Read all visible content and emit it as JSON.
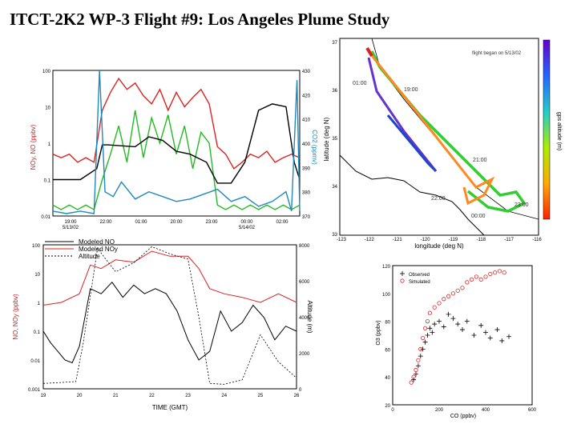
{
  "title": "ITCT-2K2 WP-3 Flight #9: Los Angeles Plume Study",
  "colors": {
    "red": "#dd2222",
    "green": "#22bb22",
    "black": "#000000",
    "cyan": "#2288bb"
  },
  "chart_data": [
    {
      "type": "line",
      "yscale": "log",
      "ylim": [
        0.01,
        100
      ],
      "y2lim": [
        370,
        430
      ],
      "ylabel": "NOy, NO (ppbv)",
      "y2label": "CO2 (ppmv)",
      "yticks": [
        "100",
        "10",
        "1",
        "0.1",
        "0.01"
      ],
      "y2ticks": [
        "430",
        "420",
        "410",
        "400",
        "390",
        "380",
        "370"
      ],
      "xticks": [
        "19:00\n5/13/02",
        "22:00",
        "01:00",
        "20:00",
        "23:00",
        "00:00\n5/14/02",
        "02:00"
      ],
      "series": [
        {
          "color": "red",
          "axis": "left",
          "x": [
            0,
            0.3,
            0.6,
            0.9,
            1.2,
            1.5,
            1.8,
            2.1,
            2.4,
            2.7,
            3,
            3.3,
            3.6,
            3.9,
            4.2,
            4.5,
            4.8,
            5.1,
            5.4,
            5.7,
            6,
            6.3,
            6.6,
            6.9,
            7.2,
            7.5,
            7.8,
            8.1,
            8.4,
            8.7,
            9
          ],
          "y": [
            0.5,
            0.4,
            0.5,
            0.3,
            0.4,
            0.3,
            8,
            25,
            60,
            30,
            45,
            20,
            12,
            30,
            8,
            25,
            10,
            18,
            30,
            12,
            0.8,
            0.5,
            0.2,
            0.3,
            0.5,
            0.4,
            0.6,
            0.3,
            0.4,
            0.5,
            0.4
          ]
        },
        {
          "color": "green",
          "axis": "left",
          "x": [
            0,
            0.3,
            0.6,
            0.9,
            1.2,
            1.5,
            1.8,
            2.1,
            2.4,
            2.7,
            3,
            3.3,
            3.6,
            3.9,
            4.2,
            4.5,
            4.8,
            5.1,
            5.4,
            5.7,
            6,
            6.3,
            6.6,
            6.9,
            7.2,
            7.5,
            7.8,
            8.1,
            8.4,
            8.7,
            9
          ],
          "y": [
            0.02,
            0.015,
            0.02,
            0.015,
            0.02,
            0.015,
            0.1,
            0.5,
            3,
            0.3,
            8,
            0.4,
            5,
            1,
            6,
            0.5,
            3,
            0.2,
            2,
            1,
            0.02,
            0.015,
            0.02,
            0.015,
            0.02,
            0.015,
            0.02,
            0.015,
            0.02,
            0.015,
            0.02
          ]
        },
        {
          "color": "black",
          "axis": "left",
          "x": [
            0,
            1,
            1.6,
            1.8,
            2,
            3,
            3.5,
            4,
            4.5,
            5,
            5.6,
            6,
            6.5,
            7,
            7.5,
            8,
            8.5,
            8.8,
            9
          ],
          "y": [
            0.1,
            0.1,
            0.2,
            0.9,
            0.9,
            0.8,
            1.5,
            1.2,
            0.6,
            0.5,
            0.3,
            0.08,
            0.08,
            0.3,
            8,
            12,
            10,
            0.3,
            0.1
          ]
        },
        {
          "color": "cyan",
          "axis": "right",
          "x": [
            0,
            0.5,
            1,
            1.5,
            1.7,
            1.9,
            2.2,
            2.5,
            3,
            3.5,
            4,
            4.5,
            5,
            5.5,
            6,
            6.5,
            7,
            7.5,
            8,
            8.5,
            8.7,
            8.9,
            9
          ],
          "y": [
            372,
            371,
            372,
            371,
            430,
            380,
            378,
            384,
            377,
            380,
            378,
            376,
            377,
            379,
            381,
            376,
            378,
            374,
            376,
            380,
            372,
            426,
            372
          ]
        }
      ]
    },
    {
      "type": "scatter",
      "xlabel": "longitude (deg N)",
      "ylabel": "latitude (deg N)",
      "colorbar_label": "gps altitude (m)",
      "xticks": [
        "-123",
        "-122",
        "-121",
        "-120",
        "-119",
        "-118",
        "-117",
        "-116"
      ],
      "yticks": [
        "37",
        "36",
        "35",
        "34",
        "33"
      ],
      "annotations": [
        "flight began on 5/13/02",
        "01:00",
        "19:00",
        "21:00",
        "22:00",
        "23:00",
        "00:00"
      ]
    },
    {
      "type": "line",
      "yscale": "log",
      "ylim": [
        0.001,
        100
      ],
      "xlim": [
        19,
        26
      ],
      "y2lim": [
        0,
        8000
      ],
      "xlabel": "TIME (GMT)",
      "ylabel": "NO, NOy (ppbv)",
      "y2label": "Altitude (m)",
      "xticks": [
        "19",
        "20",
        "21",
        "22",
        "23",
        "24",
        "25",
        "26"
      ],
      "yticks": [
        "100",
        "10",
        "1",
        "0.1",
        "0.01",
        "0.001"
      ],
      "y2ticks": [
        "8000",
        "6000",
        "4000",
        "2000",
        "0"
      ],
      "series": [
        {
          "name": "Modeled NO",
          "color": "black",
          "axis": "left",
          "x": [
            19,
            19.2,
            19.4,
            19.6,
            19.8,
            20,
            20.3,
            20.6,
            20.9,
            21.2,
            21.5,
            21.8,
            22.1,
            22.4,
            22.7,
            23,
            23.3,
            23.6,
            23.9,
            24.2,
            24.5,
            24.8,
            25.1,
            25.4,
            25.7,
            26
          ],
          "y": [
            0.1,
            0.04,
            0.02,
            0.01,
            0.008,
            0.03,
            3,
            2,
            5,
            1.5,
            4,
            2,
            3,
            2,
            0.5,
            0.05,
            0.01,
            0.02,
            0.5,
            0.1,
            0.2,
            0.8,
            0.3,
            0.05,
            0.15,
            0.1
          ]
        },
        {
          "name": "Modeled NOy",
          "color": "red",
          "axis": "left",
          "x": [
            19,
            19.5,
            20,
            20.3,
            20.6,
            21,
            21.5,
            22,
            22.5,
            23,
            23.3,
            23.6,
            24,
            24.5,
            25,
            25.5,
            26
          ],
          "y": [
            0.8,
            1,
            2,
            20,
            15,
            30,
            25,
            60,
            40,
            40,
            15,
            3,
            2,
            1.5,
            1,
            2,
            1
          ]
        },
        {
          "name": "Altitude",
          "color": "black",
          "axis": "right",
          "x": [
            19,
            19.5,
            19.9,
            20.1,
            20.5,
            21,
            21.5,
            22,
            22.5,
            23,
            23.3,
            23.6,
            24,
            24.5,
            25,
            25.5,
            26
          ],
          "y": [
            300,
            350,
            400,
            2500,
            7800,
            6500,
            7000,
            7900,
            7500,
            7200,
            4000,
            300,
            250,
            500,
            3000,
            1500,
            600
          ]
        }
      ]
    },
    {
      "type": "scatter",
      "xlabel": "CO (ppbv)",
      "ylabel": "O3 (ppbv)",
      "xlim": [
        0,
        600
      ],
      "ylim": [
        20,
        120
      ],
      "xticks": [
        "0",
        "200",
        "400",
        "600"
      ],
      "yticks": [
        "120",
        "100",
        "80",
        "60",
        "40",
        "20"
      ],
      "series": [
        {
          "name": "Observed",
          "color": "black",
          "marker": "+",
          "x": [
            90,
            100,
            110,
            120,
            130,
            140,
            150,
            160,
            170,
            180,
            200,
            220,
            240,
            260,
            280,
            300,
            320,
            350,
            380,
            400,
            420,
            450,
            470,
            500
          ],
          "y": [
            38,
            42,
            48,
            55,
            60,
            65,
            70,
            75,
            72,
            78,
            80,
            76,
            85,
            82,
            78,
            74,
            80,
            70,
            77,
            72,
            68,
            74,
            66,
            69
          ]
        },
        {
          "name": "Simulated",
          "color": "red",
          "marker": "o",
          "x": [
            80,
            90,
            100,
            110,
            120,
            130,
            140,
            150,
            160,
            180,
            200,
            220,
            240,
            260,
            280,
            300,
            320,
            340,
            360,
            380,
            400,
            420,
            440,
            460,
            480
          ],
          "y": [
            36,
            40,
            45,
            52,
            60,
            68,
            75,
            80,
            86,
            90,
            93,
            96,
            98,
            100,
            102,
            104,
            108,
            110,
            112,
            110,
            112,
            114,
            115,
            116,
            115
          ]
        }
      ]
    }
  ]
}
